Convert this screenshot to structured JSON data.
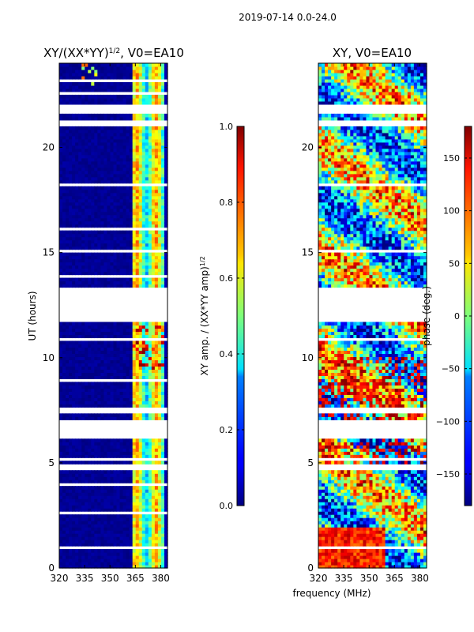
{
  "suptitle": "2019-07-14 0.0-24.0",
  "xlabel_common": "frequency (MHz)",
  "chart_data": [
    {
      "type": "heatmap",
      "title": "XY/(XX*YY)",
      "title_exponent": "1/2",
      "title_suffix": ", V0=EA10",
      "ylabel": "UT (hours)",
      "x_range": [
        320,
        384
      ],
      "y_range": [
        0,
        24
      ],
      "x_ticks": [
        "320",
        "335",
        "350",
        "365",
        "380"
      ],
      "x_tick_values": [
        320,
        335,
        350,
        365,
        380
      ],
      "y_ticks": [
        "0",
        "5",
        "10",
        "15",
        "20"
      ],
      "y_tick_values": [
        0,
        5,
        10,
        15,
        20
      ],
      "colorbar": {
        "label": "XY amp. / (XX*YY amp)",
        "label_exponent": "1/2",
        "range": [
          0.0,
          1.0
        ],
        "ticks": [
          "0.0",
          "0.2",
          "0.4",
          "0.6",
          "0.8",
          "1.0"
        ],
        "tick_values": [
          0.0,
          0.2,
          0.4,
          0.6,
          0.8,
          1.0
        ],
        "colormap": "jet"
      },
      "gaps_hours": [
        [
          0.9,
          1.0
        ],
        [
          1.9,
          2.0
        ],
        [
          2.6,
          2.7
        ],
        [
          3.4,
          3.5
        ],
        [
          3.9,
          4.0
        ],
        [
          4.6,
          4.9
        ],
        [
          5.1,
          5.3
        ],
        [
          6.2,
          6.4
        ],
        [
          6.5,
          7.0
        ],
        [
          7.4,
          7.6
        ],
        [
          8.9,
          9.0
        ],
        [
          10.8,
          10.9
        ],
        [
          11.7,
          13.4
        ],
        [
          13.8,
          13.9
        ],
        [
          15.0,
          15.1
        ],
        [
          16.1,
          16.2
        ],
        [
          17.2,
          17.3
        ],
        [
          18.1,
          18.3
        ],
        [
          19.0,
          19.1
        ],
        [
          21.0,
          21.3
        ],
        [
          21.6,
          22.0
        ],
        [
          22.5,
          22.6
        ],
        [
          23.1,
          23.2
        ]
      ]
    },
    {
      "type": "heatmap",
      "title": "XY, V0=EA10",
      "ylabel": "",
      "x_range": [
        320,
        384
      ],
      "y_range": [
        0,
        24
      ],
      "x_ticks": [
        "320",
        "335",
        "350",
        "365",
        "380"
      ],
      "x_tick_values": [
        320,
        335,
        350,
        365,
        380
      ],
      "y_ticks": [
        "0",
        "5",
        "10",
        "15",
        "20"
      ],
      "y_tick_values": [
        0,
        5,
        10,
        15,
        20
      ],
      "colorbar": {
        "label": "phase (deg.)",
        "range": [
          -180,
          180
        ],
        "ticks": [
          "150",
          "100",
          "50",
          "0",
          "−50",
          "−100",
          "−150"
        ],
        "tick_values": [
          150,
          100,
          50,
          0,
          -50,
          -100,
          -150
        ],
        "colormap": "jet"
      },
      "gaps_hours": [
        [
          0.9,
          1.0
        ],
        [
          1.9,
          2.0
        ],
        [
          3.4,
          3.5
        ],
        [
          4.6,
          4.9
        ],
        [
          5.1,
          5.3
        ],
        [
          6.2,
          6.4
        ],
        [
          6.5,
          7.0
        ],
        [
          7.4,
          7.6
        ],
        [
          10.8,
          10.9
        ],
        [
          11.7,
          13.4
        ],
        [
          15.0,
          15.1
        ],
        [
          18.1,
          18.3
        ],
        [
          21.0,
          21.3
        ],
        [
          21.6,
          22.0
        ]
      ]
    }
  ]
}
